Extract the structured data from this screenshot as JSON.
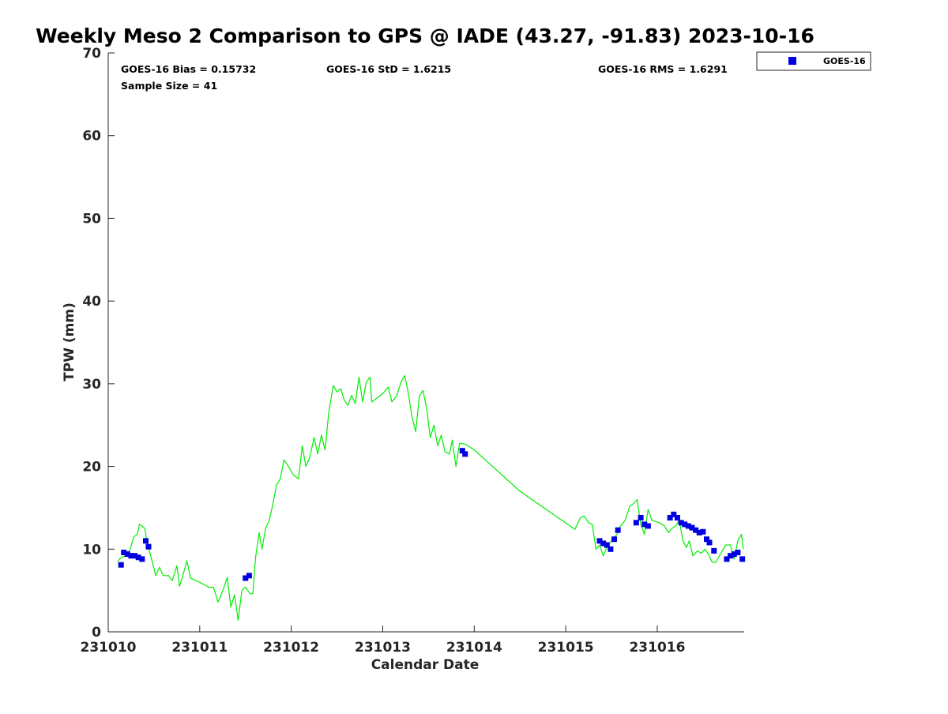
{
  "chart_data": {
    "type": "scatter",
    "title": "Weekly Meso 2 Comparison to GPS @ IADE (43.27, -91.83) 2023-10-16",
    "xlabel": "Calendar Date",
    "ylabel": "TPW (mm)",
    "xlim": [
      0,
      6.95
    ],
    "ylim": [
      0,
      70
    ],
    "x_ticks": [
      {
        "value": 0,
        "label": "231010"
      },
      {
        "value": 1,
        "label": "231011"
      },
      {
        "value": 2,
        "label": "231012"
      },
      {
        "value": 3,
        "label": "231013"
      },
      {
        "value": 4,
        "label": "231014"
      },
      {
        "value": 5,
        "label": "231015"
      },
      {
        "value": 6,
        "label": "231016"
      }
    ],
    "y_ticks": [
      0,
      10,
      20,
      30,
      40,
      50,
      60,
      70
    ],
    "grid": false,
    "legend_position": "outside-top-right",
    "stats": {
      "bias": "GOES-16 Bias = 0.15732",
      "std": "GOES-16 StD = 1.6215",
      "rms": "GOES-16 RMS = 1.6291",
      "sample": "Sample Size = 41"
    },
    "series": [
      {
        "name": "GOES-16",
        "kind": "scatter",
        "marker": "square",
        "color": "#0000e0",
        "points": [
          [
            0.14,
            8.1
          ],
          [
            0.17,
            9.6
          ],
          [
            0.21,
            9.4
          ],
          [
            0.25,
            9.2
          ],
          [
            0.29,
            9.2
          ],
          [
            0.33,
            9.0
          ],
          [
            0.37,
            8.8
          ],
          [
            0.41,
            11.0
          ],
          [
            0.44,
            10.3
          ],
          [
            1.5,
            6.5
          ],
          [
            1.54,
            6.8
          ],
          [
            3.87,
            21.9
          ],
          [
            3.9,
            21.5
          ],
          [
            5.37,
            11.0
          ],
          [
            5.41,
            10.7
          ],
          [
            5.45,
            10.5
          ],
          [
            5.49,
            10.0
          ],
          [
            5.53,
            11.2
          ],
          [
            5.57,
            12.3
          ],
          [
            5.77,
            13.2
          ],
          [
            5.82,
            13.8
          ],
          [
            5.86,
            13.0
          ],
          [
            5.9,
            12.8
          ],
          [
            6.14,
            13.8
          ],
          [
            6.18,
            14.2
          ],
          [
            6.22,
            13.8
          ],
          [
            6.26,
            13.2
          ],
          [
            6.3,
            13.0
          ],
          [
            6.34,
            12.8
          ],
          [
            6.38,
            12.6
          ],
          [
            6.42,
            12.3
          ],
          [
            6.46,
            12.0
          ],
          [
            6.5,
            12.1
          ],
          [
            6.54,
            11.2
          ],
          [
            6.57,
            10.8
          ],
          [
            6.62,
            9.8
          ],
          [
            6.76,
            8.8
          ],
          [
            6.8,
            9.2
          ],
          [
            6.84,
            9.4
          ],
          [
            6.88,
            9.6
          ],
          [
            6.93,
            8.8
          ]
        ]
      },
      {
        "name": "",
        "kind": "line",
        "color": "#00ee00",
        "points": [
          [
            0.1,
            8.5
          ],
          [
            0.14,
            9.0
          ],
          [
            0.2,
            9.2
          ],
          [
            0.24,
            10.0
          ],
          [
            0.28,
            11.5
          ],
          [
            0.32,
            11.8
          ],
          [
            0.34,
            13.0
          ],
          [
            0.37,
            12.8
          ],
          [
            0.4,
            12.5
          ],
          [
            0.43,
            10.5
          ],
          [
            0.47,
            9.0
          ],
          [
            0.52,
            6.8
          ],
          [
            0.56,
            7.8
          ],
          [
            0.6,
            6.8
          ],
          [
            0.66,
            6.8
          ],
          [
            0.7,
            6.2
          ],
          [
            0.75,
            8.0
          ],
          [
            0.78,
            5.5
          ],
          [
            0.82,
            7.0
          ],
          [
            0.86,
            8.6
          ],
          [
            0.9,
            6.5
          ],
          [
            1.0,
            6.0
          ],
          [
            1.1,
            5.4
          ],
          [
            1.15,
            5.4
          ],
          [
            1.2,
            3.6
          ],
          [
            1.26,
            5.2
          ],
          [
            1.3,
            6.6
          ],
          [
            1.34,
            3.0
          ],
          [
            1.38,
            4.5
          ],
          [
            1.42,
            1.4
          ],
          [
            1.46,
            5.0
          ],
          [
            1.5,
            5.4
          ],
          [
            1.55,
            4.6
          ],
          [
            1.58,
            4.6
          ],
          [
            1.61,
            9.0
          ],
          [
            1.65,
            12.0
          ],
          [
            1.68,
            10.0
          ],
          [
            1.72,
            12.5
          ],
          [
            1.76,
            13.5
          ],
          [
            1.8,
            15.5
          ],
          [
            1.84,
            17.8
          ],
          [
            1.88,
            18.5
          ],
          [
            1.92,
            20.8
          ],
          [
            1.97,
            20.0
          ],
          [
            2.02,
            19.0
          ],
          [
            2.08,
            18.5
          ],
          [
            2.12,
            22.5
          ],
          [
            2.16,
            20.0
          ],
          [
            2.2,
            21.0
          ],
          [
            2.25,
            23.5
          ],
          [
            2.29,
            21.5
          ],
          [
            2.33,
            23.8
          ],
          [
            2.37,
            22.0
          ],
          [
            2.41,
            26.5
          ],
          [
            2.46,
            29.8
          ],
          [
            2.5,
            29.0
          ],
          [
            2.54,
            29.4
          ],
          [
            2.58,
            28.0
          ],
          [
            2.62,
            27.4
          ],
          [
            2.66,
            28.6
          ],
          [
            2.7,
            27.6
          ],
          [
            2.74,
            30.8
          ],
          [
            2.78,
            27.8
          ],
          [
            2.82,
            30.2
          ],
          [
            2.86,
            30.8
          ],
          [
            2.88,
            27.8
          ],
          [
            3.0,
            28.8
          ],
          [
            3.06,
            29.6
          ],
          [
            3.1,
            27.8
          ],
          [
            3.15,
            28.5
          ],
          [
            3.2,
            30.2
          ],
          [
            3.24,
            31.0
          ],
          [
            3.28,
            28.8
          ],
          [
            3.32,
            26.0
          ],
          [
            3.36,
            24.2
          ],
          [
            3.4,
            28.5
          ],
          [
            3.44,
            29.2
          ],
          [
            3.48,
            27.0
          ],
          [
            3.52,
            23.5
          ],
          [
            3.56,
            25.0
          ],
          [
            3.6,
            22.5
          ],
          [
            3.64,
            23.8
          ],
          [
            3.68,
            21.8
          ],
          [
            3.73,
            21.5
          ],
          [
            3.76,
            23.2
          ],
          [
            3.8,
            20.0
          ],
          [
            3.84,
            22.8
          ],
          [
            3.9,
            22.7
          ],
          [
            4.0,
            22.0
          ],
          [
            4.5,
            17.0
          ],
          [
            5.1,
            12.4
          ],
          [
            5.16,
            13.8
          ],
          [
            5.2,
            14.0
          ],
          [
            5.25,
            13.2
          ],
          [
            5.29,
            13.0
          ],
          [
            5.33,
            10.0
          ],
          [
            5.37,
            10.5
          ],
          [
            5.41,
            9.2
          ],
          [
            5.46,
            10.5
          ],
          [
            5.5,
            11.0
          ],
          [
            5.56,
            11.8
          ],
          [
            5.6,
            12.8
          ],
          [
            5.65,
            13.5
          ],
          [
            5.7,
            15.2
          ],
          [
            5.74,
            15.5
          ],
          [
            5.78,
            16.0
          ],
          [
            5.82,
            13.0
          ],
          [
            5.86,
            11.8
          ],
          [
            5.9,
            14.8
          ],
          [
            5.94,
            13.5
          ],
          [
            6.02,
            13.2
          ],
          [
            6.08,
            12.8
          ],
          [
            6.12,
            12.0
          ],
          [
            6.16,
            12.5
          ],
          [
            6.2,
            12.8
          ],
          [
            6.24,
            13.5
          ],
          [
            6.28,
            11.0
          ],
          [
            6.32,
            10.2
          ],
          [
            6.35,
            11.0
          ],
          [
            6.39,
            9.2
          ],
          [
            6.44,
            9.8
          ],
          [
            6.48,
            9.5
          ],
          [
            6.52,
            10.0
          ],
          [
            6.56,
            9.4
          ],
          [
            6.6,
            8.4
          ],
          [
            6.64,
            8.4
          ],
          [
            6.7,
            9.6
          ],
          [
            6.75,
            10.5
          ],
          [
            6.8,
            10.5
          ],
          [
            6.84,
            8.8
          ],
          [
            6.88,
            11.0
          ],
          [
            6.92,
            11.8
          ],
          [
            6.94,
            10.0
          ]
        ]
      }
    ]
  }
}
